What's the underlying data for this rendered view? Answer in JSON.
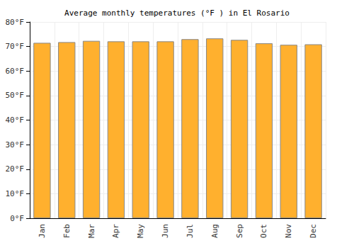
{
  "chart_data": {
    "type": "bar",
    "title": "Average monthly temperatures (°F ) in El Rosario",
    "categories": [
      "Jan",
      "Feb",
      "Mar",
      "Apr",
      "May",
      "Jun",
      "Jul",
      "Aug",
      "Sep",
      "Oct",
      "Nov",
      "Dec"
    ],
    "values": [
      71.5,
      71.8,
      72.3,
      72.1,
      72.1,
      72.1,
      73.0,
      73.3,
      72.7,
      71.3,
      70.7,
      70.9
    ],
    "color": "#ffb02e",
    "ylim": [
      0,
      80
    ],
    "yticks": [
      {
        "value": 0,
        "label": "0°F"
      },
      {
        "value": 10,
        "label": "10°F"
      },
      {
        "value": 20,
        "label": "20°F"
      },
      {
        "value": 30,
        "label": "30°F"
      },
      {
        "value": 40,
        "label": "40°F"
      },
      {
        "value": 50,
        "label": "50°F"
      },
      {
        "value": 60,
        "label": "60°F"
      },
      {
        "value": 70,
        "label": "70°F"
      },
      {
        "value": 80,
        "label": "80°F"
      }
    ],
    "grid": true
  }
}
